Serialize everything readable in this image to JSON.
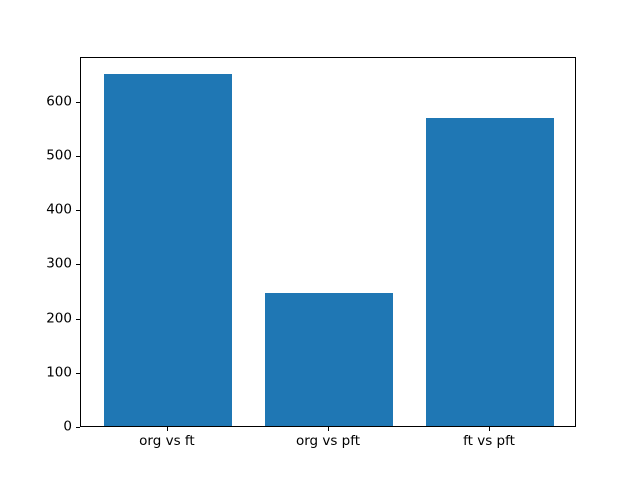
{
  "chart_data": {
    "type": "bar",
    "categories": [
      "org vs ft",
      "org vs pft",
      "ft vs pft"
    ],
    "values": [
      650,
      246,
      569
    ],
    "yticks": [
      0,
      100,
      200,
      300,
      400,
      500,
      600
    ],
    "ylim": [
      0,
      682.5
    ],
    "bar_color": "#1f77b4",
    "grid": false,
    "legend": null,
    "bar_width_fraction": 0.8,
    "x_margin_fraction": 0.05
  },
  "layout_colors": {
    "background": "#ffffff",
    "spine": "#000000",
    "tick_text": "#000000"
  }
}
